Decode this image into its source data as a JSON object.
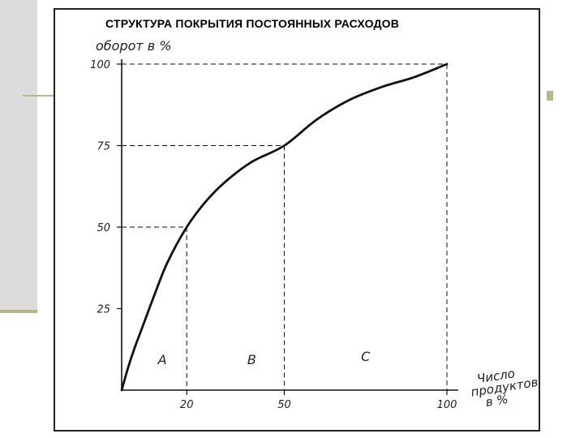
{
  "title": "СТРУКТУРА ПОКРЫТИЯ ПОСТОЯННЫХ РАСХОДОВ",
  "colors": {
    "ink": "#111111",
    "panel": "#dcdcdc",
    "accent": "#b7b78a"
  },
  "chart_data": {
    "type": "line",
    "title": "СТРУКТУРА ПОКРЫТИЯ ПОСТОЯННЫХ РАСХОДОВ",
    "ylabel": "оборот в %",
    "xlabel": "Число продуктов в %",
    "xlim": [
      0,
      100
    ],
    "ylim": [
      0,
      100
    ],
    "x_ticks": [
      "20",
      "50",
      "100"
    ],
    "x_tick_values": [
      20,
      50,
      100
    ],
    "y_ticks": [
      "25",
      "50",
      "75",
      "100"
    ],
    "y_tick_values": [
      25,
      50,
      75,
      100
    ],
    "series": [
      {
        "points": [
          [
            0,
            0
          ],
          [
            2,
            7
          ],
          [
            4,
            13
          ],
          [
            7,
            21
          ],
          [
            10,
            29
          ],
          [
            14,
            39
          ],
          [
            20,
            50
          ],
          [
            26,
            58
          ],
          [
            32,
            64
          ],
          [
            40,
            70
          ],
          [
            50,
            75
          ],
          [
            60,
            83
          ],
          [
            70,
            89
          ],
          [
            80,
            93
          ],
          [
            90,
            96
          ],
          [
            100,
            100
          ]
        ]
      }
    ],
    "reference_points": [
      [
        20,
        50
      ],
      [
        50,
        75
      ],
      [
        100,
        100
      ]
    ],
    "region_labels": [
      {
        "label": "А",
        "x": 12.5,
        "y": 8
      },
      {
        "label": "В",
        "x": 40,
        "y": 8
      },
      {
        "label": "С",
        "x": 75,
        "y": 9
      }
    ],
    "grid": false
  }
}
